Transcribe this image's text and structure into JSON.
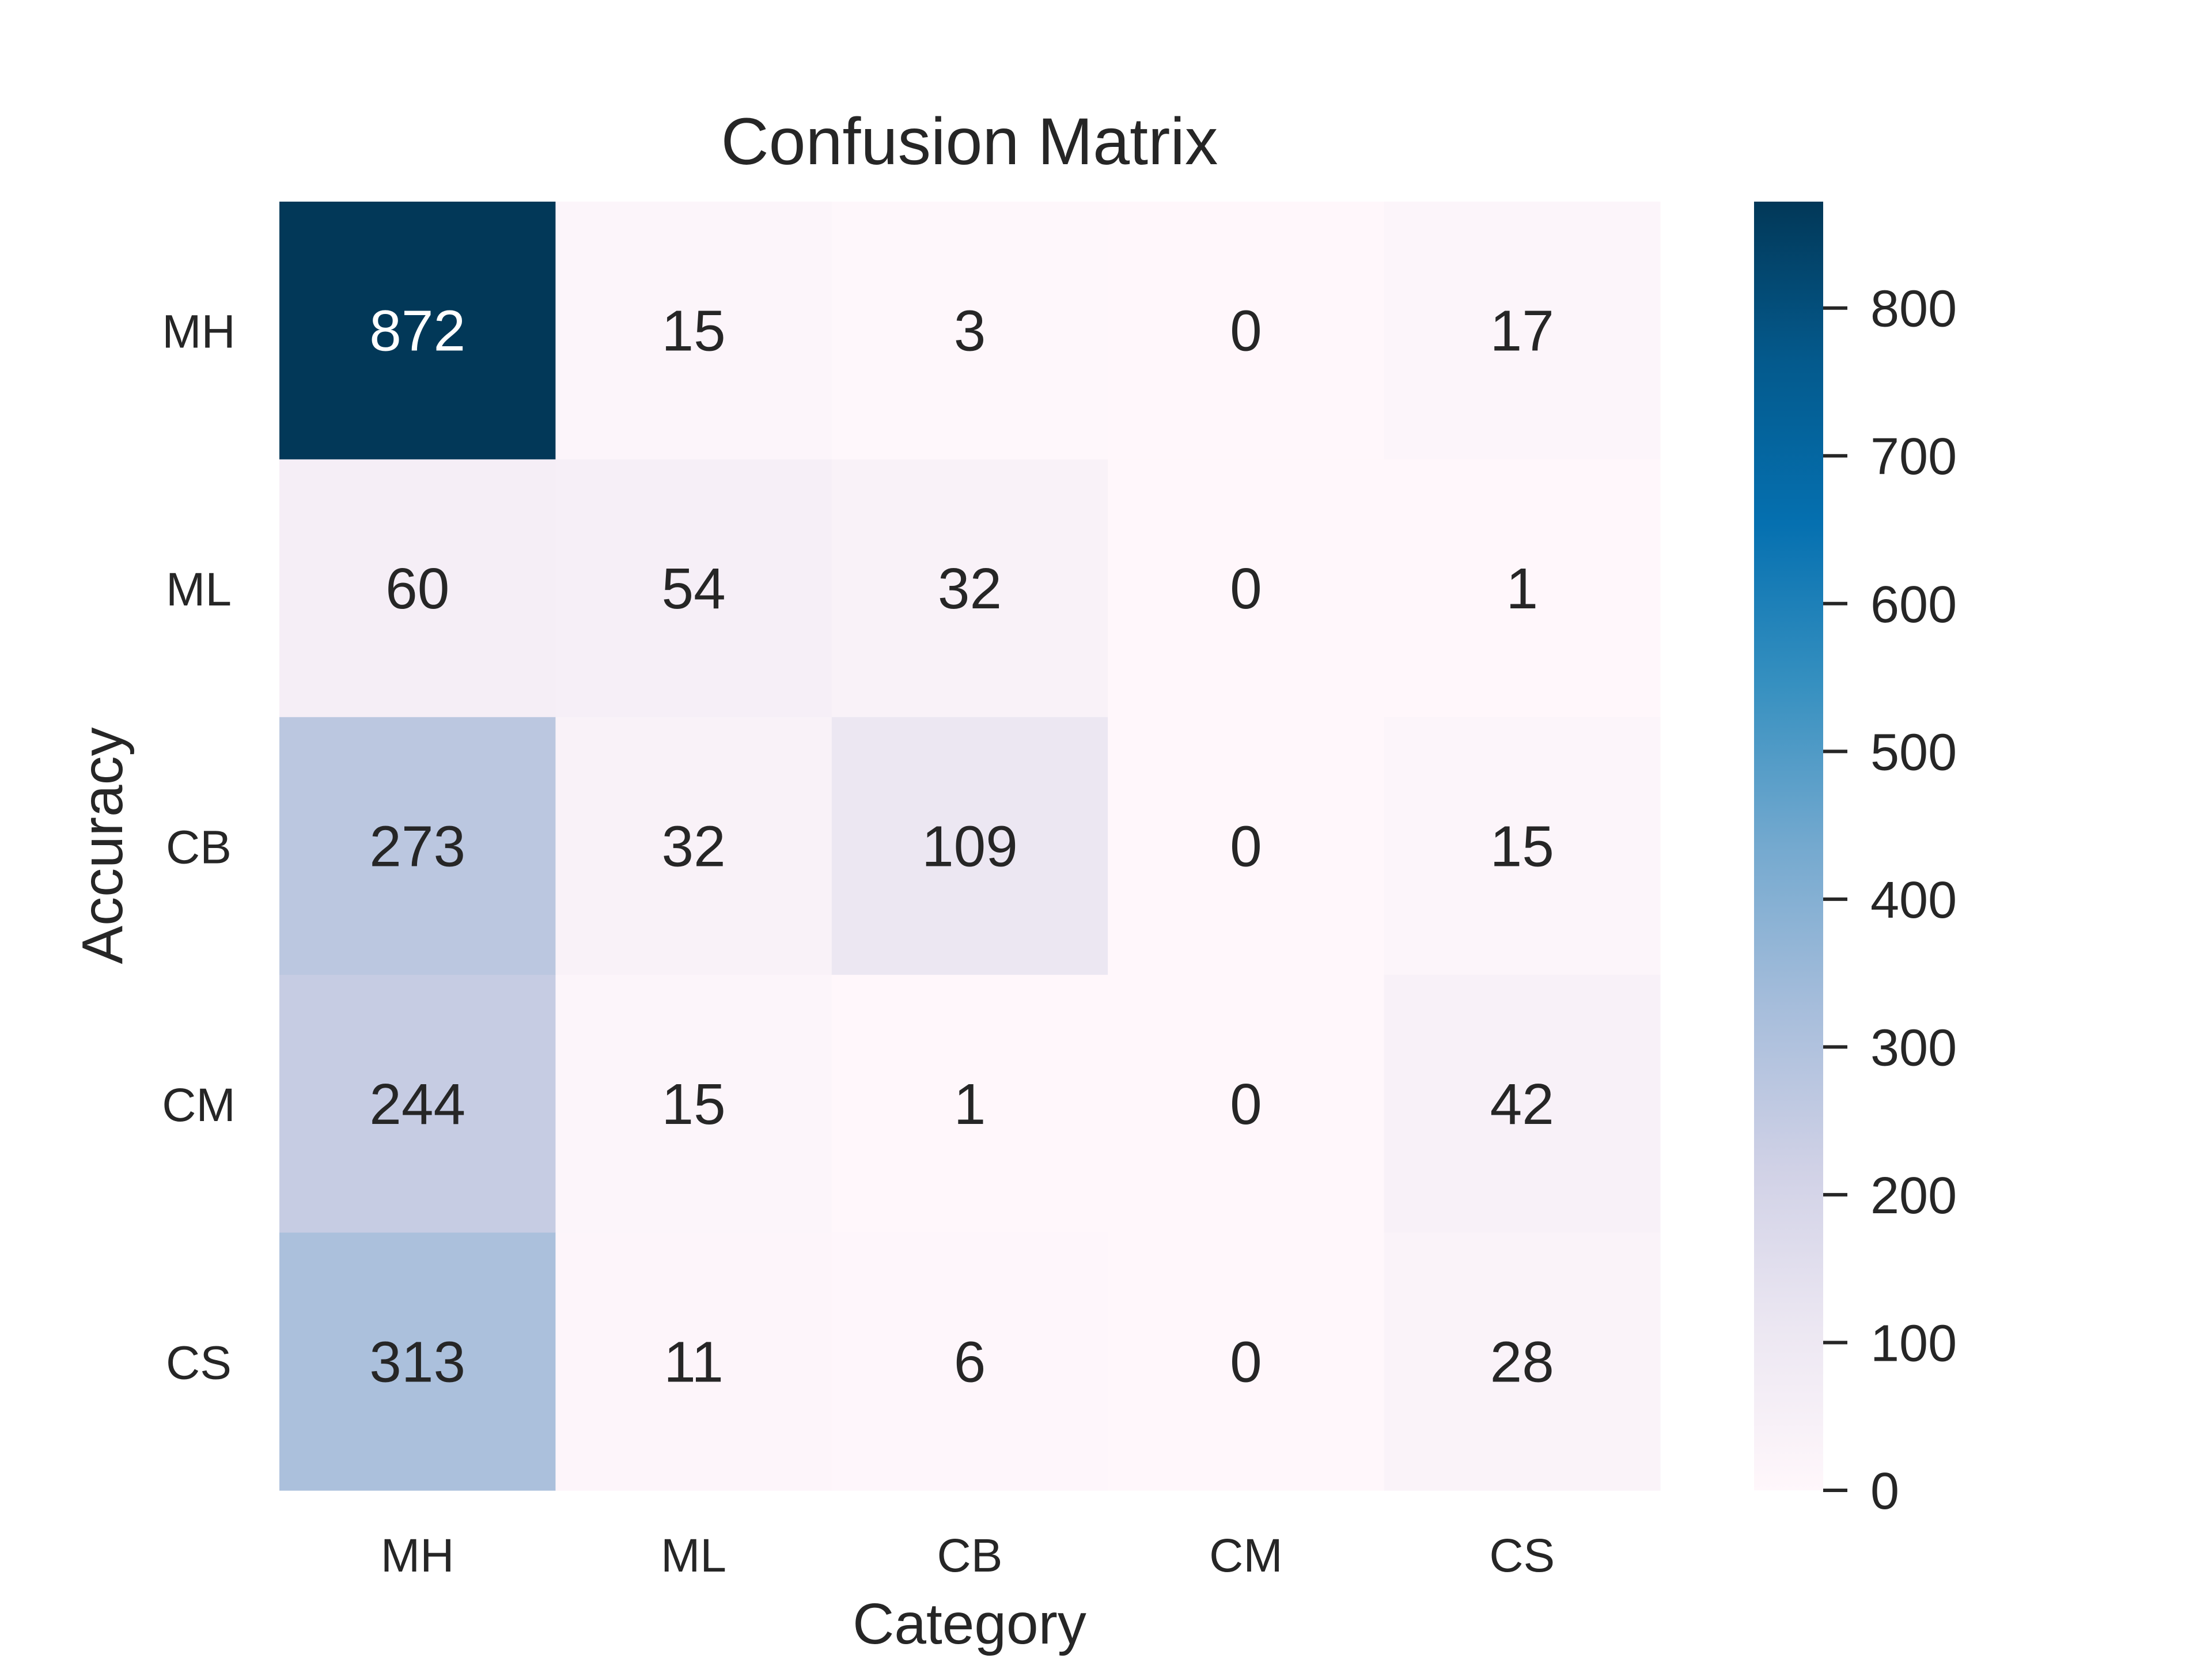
{
  "chart_data": {
    "type": "heatmap",
    "title": "Confusion Matrix",
    "xlabel": "Category",
    "ylabel": "Accuracy",
    "x_categories": [
      "MH",
      "ML",
      "CB",
      "CM",
      "CS"
    ],
    "y_categories": [
      "MH",
      "ML",
      "CB",
      "CM",
      "CS"
    ],
    "values": [
      [
        872,
        15,
        3,
        0,
        17
      ],
      [
        60,
        54,
        32,
        0,
        1
      ],
      [
        273,
        32,
        109,
        0,
        15
      ],
      [
        244,
        15,
        1,
        0,
        42
      ],
      [
        313,
        11,
        6,
        0,
        28
      ]
    ],
    "colorbar": {
      "range": [
        0,
        872
      ],
      "ticks": [
        0,
        100,
        200,
        300,
        400,
        500,
        600,
        700,
        800
      ],
      "colormap": "PuBu",
      "low_color": "#fff7fb",
      "high_color": "#023858"
    },
    "grid": false,
    "annotations": "cell values shown in each cell"
  }
}
